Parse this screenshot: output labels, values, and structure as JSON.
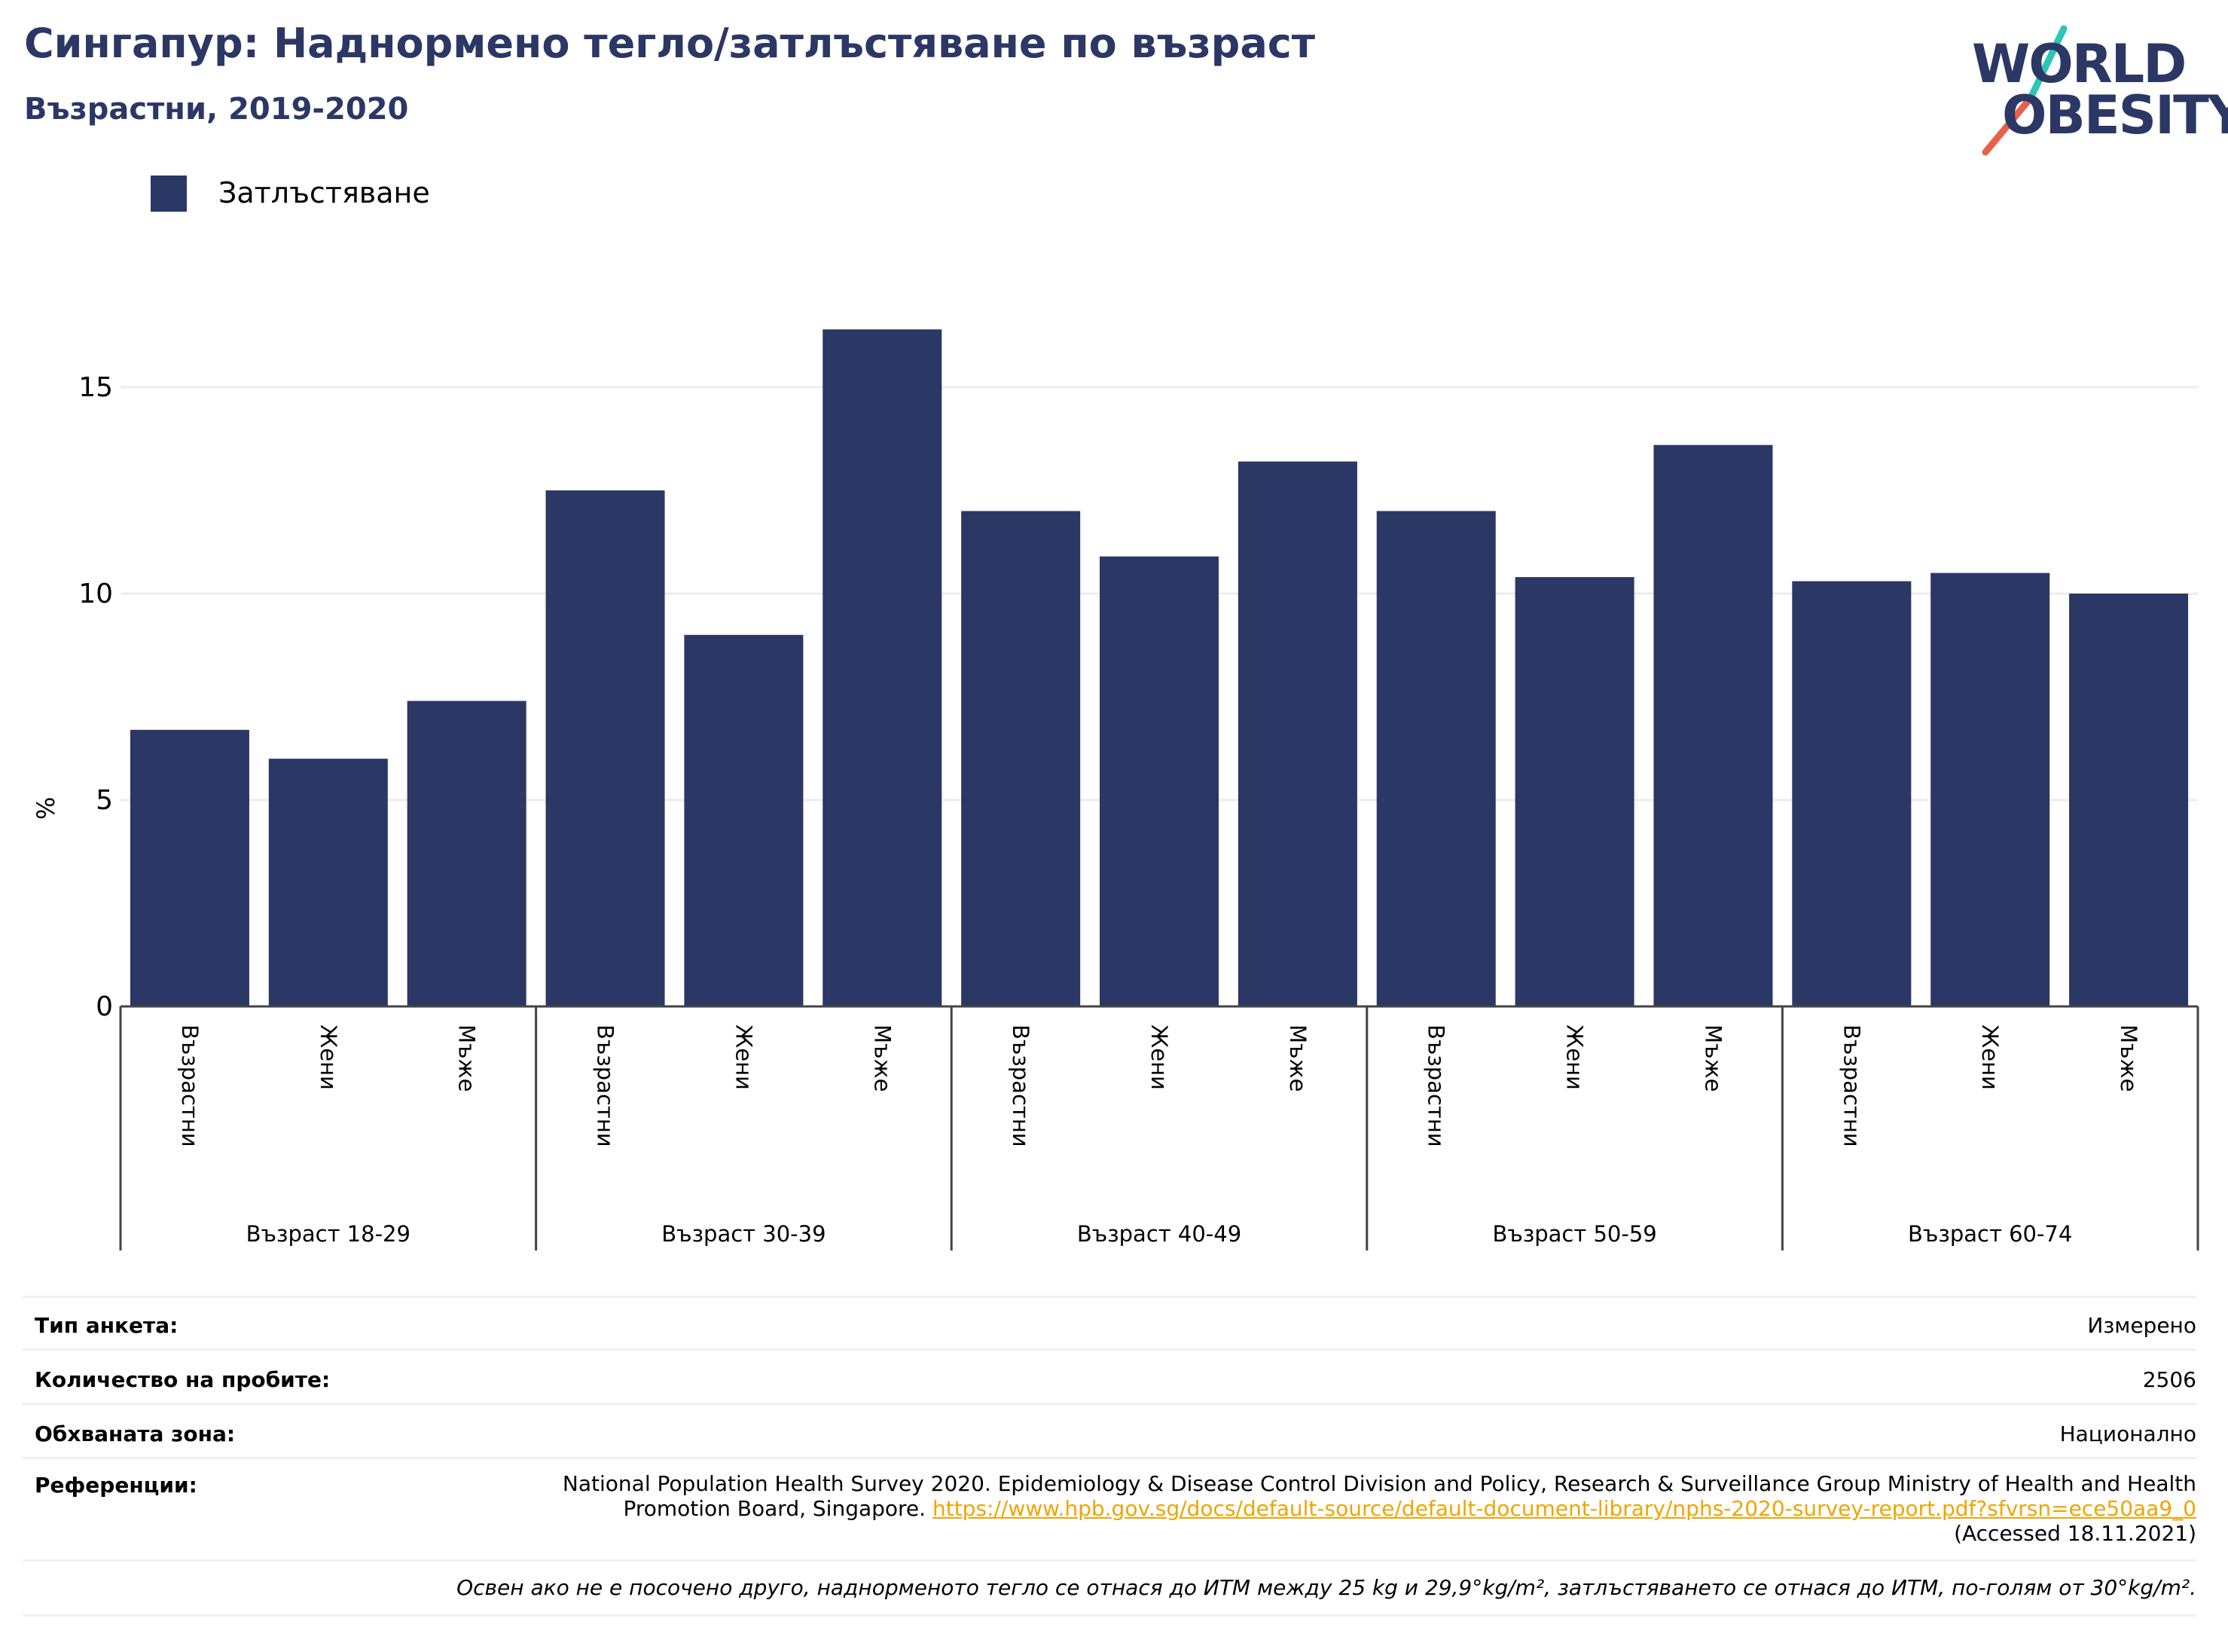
{
  "header": {
    "title": "Сингапур: Наднормено тегло/затлъстяване по възраст",
    "subtitle": "Възрастни, 2019-2020"
  },
  "logo": {
    "line1": "WORLD",
    "line2": "OBESITY",
    "colors": {
      "text": "#2b3764",
      "slash_top": "#2ec4b6",
      "slash_bottom": "#e8604c"
    }
  },
  "legend": {
    "label": "Затлъстяване",
    "color": "#2b3764"
  },
  "chart_data": {
    "type": "bar",
    "ylabel": "%",
    "ylim": [
      0,
      17
    ],
    "yticks": [
      0,
      5,
      10,
      15
    ],
    "grid": true,
    "legend_position": "top-left",
    "bar_color": "#2b3764",
    "groups": [
      {
        "label": "Възраст 18-29",
        "categories": [
          "Възрастни",
          "Жени",
          "Мъже"
        ],
        "values": [
          6.7,
          6.0,
          7.4
        ]
      },
      {
        "label": "Възраст 30-39",
        "categories": [
          "Възрастни",
          "Жени",
          "Мъже"
        ],
        "values": [
          12.5,
          9.0,
          16.4
        ]
      },
      {
        "label": "Възраст 40-49",
        "categories": [
          "Възрастни",
          "Жени",
          "Мъже"
        ],
        "values": [
          12.0,
          10.9,
          13.2
        ]
      },
      {
        "label": "Възраст 50-59",
        "categories": [
          "Възрастни",
          "Жени",
          "Мъже"
        ],
        "values": [
          12.0,
          10.4,
          13.6
        ]
      },
      {
        "label": "Възраст 60-74",
        "categories": [
          "Възрастни",
          "Жени",
          "Мъже"
        ],
        "values": [
          10.3,
          10.5,
          10.0
        ]
      }
    ],
    "series": [
      {
        "name": "Затлъстяване"
      }
    ]
  },
  "info": {
    "rows": [
      {
        "key": "Тип анкета:",
        "value": "Измерено"
      },
      {
        "key": "Количество на пробите:",
        "value": "2506"
      },
      {
        "key": "Обхваната зона:",
        "value": "Национално"
      }
    ],
    "references": {
      "key": "Референции:",
      "text": "National Population Health Survey 2020. Epidemiology & Disease Control Division and Policy, Research & Surveillance Group Ministry of Health and Health Promotion Board, Singapore.",
      "link": "https://www.hpb.gov.sg/docs/default-source/default-document-library/nphs-2020-survey-report.pdf?sfvrsn=ece50aa9_0",
      "accessed": "(Accessed 18.11.2021)"
    },
    "note": "Освен ако не е посочено друго, наднорменото тегло се отнася до ИТМ между 25 kg и 29,9°kg/m², затлъстяването се отнася до ИТМ, по-голям от 30°kg/m²."
  }
}
